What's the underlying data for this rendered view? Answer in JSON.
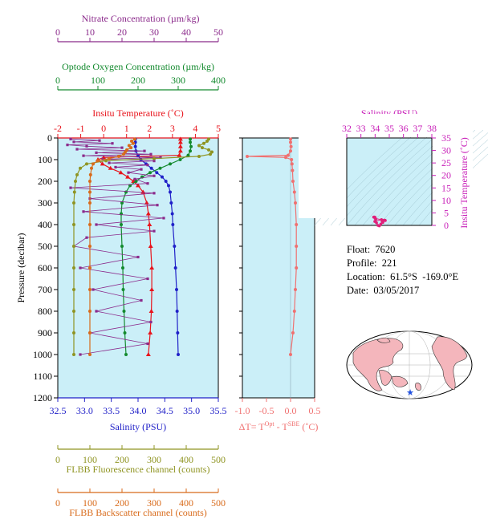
{
  "colors": {
    "nitrate": "#8b2a8b",
    "oxygen": "#138a2e",
    "temperature": "#e8141c",
    "salinity": "#2020c8",
    "fluorescence": "#8f9422",
    "backscatter": "#d86a1a",
    "delta_t": "#f07070",
    "ts_axis": "#c81fb8",
    "plot_bg": "#cbeff8",
    "land": "#f4b6bc"
  },
  "info": {
    "float_label": "Float:",
    "float_value": "7620",
    "profile_label": "Profile:",
    "profile_value": "221",
    "location_label": "Location:",
    "location_value": "61.5°S  -169.0°E",
    "date_label": "Date:",
    "date_value": "03/05/2017"
  },
  "chart_data": [
    {
      "type": "line",
      "id": "main-profile",
      "ylabel": "Pressure (decibar)",
      "ylim": [
        0,
        1200
      ],
      "yticks": [
        0,
        100,
        200,
        300,
        400,
        500,
        600,
        700,
        800,
        900,
        1000,
        1100,
        1200
      ],
      "y_inverted": true,
      "axes": {
        "nitrate": {
          "label": "Nitrate Concentration (µm/kg)",
          "range": [
            0,
            50
          ],
          "ticks": [
            0,
            10,
            20,
            30,
            40,
            50
          ]
        },
        "oxygen": {
          "label": "Optode Oxygen Concentration (µm/kg)",
          "range": [
            0,
            400
          ],
          "ticks": [
            0,
            100,
            200,
            300,
            400
          ]
        },
        "temperature": {
          "label": "Insitu Temperature (˚C)",
          "range": [
            -2,
            5
          ],
          "ticks": [
            -2,
            -1,
            0,
            1,
            2,
            3,
            4,
            5
          ]
        },
        "salinity": {
          "label": "Salinity (PSU)",
          "range": [
            32.5,
            35.5
          ],
          "ticks": [
            "32.5",
            "33.0",
            "33.5",
            "34.0",
            "34.5",
            "35.0",
            "35.5"
          ]
        },
        "fluorescence": {
          "label": "FLBB Fluorescence channel (counts)",
          "range": [
            0,
            500
          ],
          "ticks": [
            0,
            100,
            200,
            300,
            400,
            500
          ]
        },
        "backscatter": {
          "label": "FLBB Backscatter channel (counts)",
          "range": [
            0,
            500
          ],
          "ticks": [
            0,
            100,
            200,
            300,
            400,
            500
          ]
        }
      },
      "series": [
        {
          "key": "temperature",
          "p": [
            5,
            20,
            40,
            60,
            80,
            90,
            100,
            120,
            140,
            160,
            180,
            200,
            220,
            250,
            300,
            350,
            400,
            500,
            600,
            700,
            800,
            900,
            1000
          ],
          "values": [
            3.35,
            3.35,
            3.35,
            3.35,
            3.3,
            0.0,
            -0.25,
            -0.05,
            0.3,
            0.75,
            1.05,
            1.3,
            1.5,
            1.72,
            1.88,
            1.95,
            2.0,
            2.05,
            2.1,
            2.1,
            2.08,
            2.03,
            1.95
          ]
        },
        {
          "key": "salinity",
          "p": [
            5,
            20,
            40,
            60,
            80,
            100,
            120,
            140,
            160,
            180,
            200,
            220,
            250,
            300,
            350,
            400,
            500,
            600,
            700,
            800,
            900,
            1000
          ],
          "values": [
            33.95,
            33.95,
            33.95,
            33.96,
            34.0,
            34.05,
            34.15,
            34.25,
            34.35,
            34.45,
            34.52,
            34.57,
            34.6,
            34.62,
            34.64,
            34.65,
            34.68,
            34.7,
            34.72,
            34.73,
            34.74,
            34.75
          ]
        },
        {
          "key": "oxygen",
          "p": [
            5,
            20,
            40,
            60,
            80,
            100,
            120,
            140,
            160,
            180,
            200,
            220,
            250,
            300,
            350,
            400,
            500,
            600,
            700,
            800,
            900,
            1000
          ],
          "values": [
            330,
            330,
            332,
            330,
            325,
            305,
            280,
            255,
            230,
            210,
            195,
            180,
            170,
            160,
            158,
            158,
            160,
            162,
            163,
            165,
            167,
            170
          ]
        },
        {
          "key": "nitrate",
          "p": [
            5,
            12,
            18,
            25,
            32,
            38,
            45,
            52,
            60,
            68,
            75,
            82,
            90,
            98,
            106,
            115,
            125,
            135,
            145,
            160,
            175,
            190,
            210,
            230,
            255,
            280,
            310,
            340,
            370,
            400,
            430,
            460,
            500,
            550,
            600,
            650,
            700,
            750,
            800,
            850,
            900,
            950,
            1000
          ],
          "values": [
            4,
            13,
            5,
            17,
            3,
            9,
            20,
            6,
            27,
            12,
            29,
            8,
            32,
            14,
            30,
            16,
            28,
            18,
            26,
            22,
            30,
            24,
            28,
            4,
            30,
            10,
            31,
            8,
            33,
            12,
            30,
            9,
            5,
            25,
            7,
            28,
            11,
            26,
            12,
            29,
            10,
            28,
            7
          ]
        },
        {
          "key": "fluorescence",
          "p": [
            5,
            15,
            25,
            35,
            45,
            55,
            65,
            75,
            85,
            95,
            105,
            120,
            140,
            170,
            200,
            250,
            300,
            400,
            500,
            600,
            700,
            800,
            900,
            1000
          ],
          "values": [
            470,
            465,
            455,
            440,
            450,
            470,
            480,
            475,
            440,
            300,
            150,
            90,
            70,
            60,
            55,
            52,
            50,
            50,
            50,
            50,
            50,
            50,
            50,
            50
          ]
        },
        {
          "key": "backscatter",
          "p": [
            5,
            15,
            25,
            35,
            45,
            55,
            65,
            75,
            85,
            95,
            105,
            120,
            140,
            170,
            200,
            250,
            300,
            400,
            500,
            600,
            700,
            800,
            900,
            1000
          ],
          "values": [
            240,
            230,
            235,
            222,
            228,
            215,
            210,
            205,
            190,
            160,
            125,
            110,
            105,
            102,
            100,
            100,
            100,
            100,
            100,
            100,
            100,
            100,
            100,
            100
          ]
        }
      ]
    },
    {
      "type": "line",
      "id": "delta-t",
      "xlabel": "ΔT= T",
      "xlabel_sup1": "Opt",
      "xlabel_mid": " - T",
      "xlabel_sup2": "SBE",
      "xlabel_unit": " (˚C)",
      "xlim": [
        -1.0,
        0.5
      ],
      "xticks": [
        "-1.0",
        "-0.5",
        "0.0",
        "0.5"
      ],
      "ylim": [
        0,
        1200
      ],
      "series": [
        {
          "key": "delta_t",
          "p": [
            5,
            20,
            40,
            60,
            80,
            85,
            90,
            100,
            120,
            150,
            200,
            250,
            300,
            400,
            500,
            600,
            700,
            800,
            900,
            1000
          ],
          "values": [
            0.0,
            0.0,
            0.01,
            0.0,
            -0.05,
            -0.9,
            -0.1,
            0.02,
            0.03,
            0.04,
            0.05,
            0.08,
            0.1,
            0.12,
            0.12,
            0.12,
            0.1,
            0.08,
            0.05,
            0.0
          ]
        }
      ]
    },
    {
      "type": "scatter",
      "id": "ts-diagram",
      "xlabel": "Salinity (PSU)",
      "ylabel": "Insitu Temperature (˚C)",
      "xlim": [
        32,
        38
      ],
      "xticks": [
        32,
        33,
        34,
        35,
        36,
        37,
        38
      ],
      "ylim": [
        0,
        35
      ],
      "yticks": [
        0,
        5,
        10,
        15,
        20,
        25,
        30,
        35
      ],
      "points": {
        "s": [
          33.9,
          33.95,
          34.0,
          34.05,
          34.1,
          34.2,
          34.3,
          34.4,
          34.5,
          34.6,
          34.65,
          34.7,
          34.72,
          34.0,
          33.98,
          34.45,
          34.55
        ],
        "t": [
          3.3,
          3.35,
          3.2,
          2.5,
          1.0,
          0.0,
          -0.2,
          0.5,
          1.5,
          2.0,
          2.1,
          2.05,
          1.95,
          2.8,
          1.6,
          2.3,
          1.2
        ]
      }
    }
  ]
}
